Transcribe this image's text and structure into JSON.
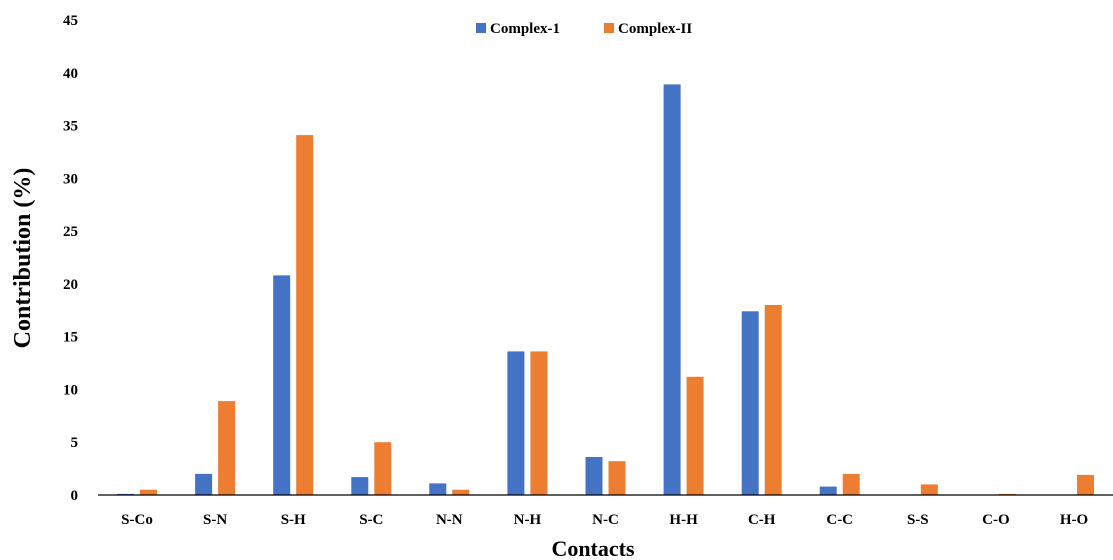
{
  "chart_data": {
    "type": "bar",
    "title": "",
    "xlabel": "Contacts",
    "ylabel": "Contribution (%)",
    "ylim": [
      0,
      45
    ],
    "yticks": [
      0,
      5,
      10,
      15,
      20,
      25,
      30,
      35,
      40,
      45
    ],
    "grid": false,
    "legend_position": "top-center",
    "categories": [
      "S-Co",
      "S-N",
      "S-H",
      "S-C",
      "N-N",
      "N-H",
      "N-C",
      "H-H",
      "C-H",
      "C-C",
      "S-S",
      "C-O",
      "H-O"
    ],
    "series": [
      {
        "name": "Complex-1",
        "color": "#4472C4",
        "values": [
          0.1,
          2.0,
          20.8,
          1.7,
          1.1,
          13.6,
          3.6,
          38.9,
          17.4,
          0.8,
          0,
          0,
          0
        ]
      },
      {
        "name": "Complex-II",
        "color": "#ED7D31",
        "values": [
          0.5,
          8.9,
          34.1,
          5.0,
          0.5,
          13.6,
          3.2,
          11.2,
          18.0,
          2.0,
          1.0,
          0.1,
          1.9
        ]
      }
    ]
  }
}
